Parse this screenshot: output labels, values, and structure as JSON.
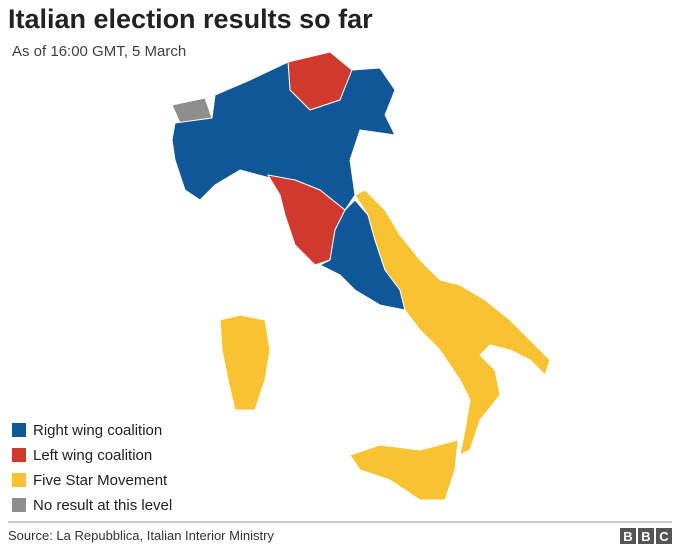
{
  "header": {
    "title": "Italian election results so far",
    "subtitle": "As of 16:00 GMT, 5 March"
  },
  "legend": {
    "items": [
      {
        "label": "Right wing coalition",
        "color": "#0f5796"
      },
      {
        "label": "Left wing coalition",
        "color": "#d1392f"
      },
      {
        "label": "Five Star Movement",
        "color": "#f8c232"
      },
      {
        "label": "No result at this level",
        "color": "#8e8e8e"
      }
    ]
  },
  "footer": {
    "source": "Source: La Repubblica, Italian Interior Ministry",
    "logo": [
      "B",
      "B",
      "C"
    ]
  }
}
